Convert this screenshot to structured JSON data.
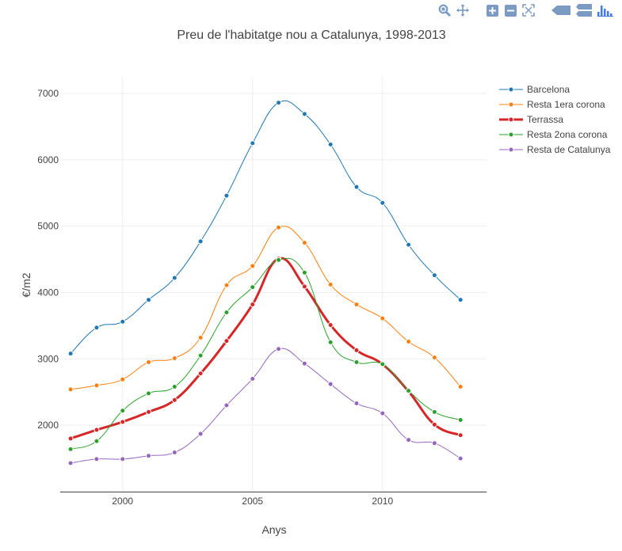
{
  "modebar": {
    "buttons": [
      {
        "name": "zoom-icon"
      },
      {
        "name": "pan-icon"
      },
      {
        "name": "zoom-in-icon"
      },
      {
        "name": "zoom-out-icon"
      },
      {
        "name": "autoscale-icon"
      },
      {
        "name": "hover-closest-icon"
      },
      {
        "name": "hover-compare-icon"
      },
      {
        "name": "plotly-logo-icon"
      }
    ],
    "icon_color": "#7b9bc3"
  },
  "chart_data": {
    "type": "line",
    "title": "Preu de l'habitatge nou a Catalunya, 1998-2013",
    "xlabel": "Anys",
    "ylabel": "€/m2",
    "xlim": [
      1997.6,
      2014.0
    ],
    "ylim": [
      1000,
      7250
    ],
    "xticks": [
      2000,
      2005,
      2010
    ],
    "yticks": [
      2000,
      3000,
      4000,
      5000,
      6000,
      7000
    ],
    "grid": true,
    "legend_position": "right",
    "x": [
      1998,
      1999,
      2000,
      2001,
      2002,
      2003,
      2004,
      2005,
      2006,
      2007,
      2008,
      2009,
      2010,
      2011,
      2012,
      2013
    ],
    "series": [
      {
        "name": "Barcelona",
        "color": "#1f77b4",
        "width": 1,
        "values": [
          3080,
          3470,
          3560,
          3890,
          4220,
          4770,
          5460,
          6250,
          6860,
          6690,
          6230,
          5590,
          5350,
          4720,
          4260,
          3890
        ]
      },
      {
        "name": "Resta 1era corona",
        "color": "#ff7f0e",
        "width": 1,
        "values": [
          2540,
          2600,
          2690,
          2950,
          3010,
          3320,
          4110,
          4400,
          4980,
          4750,
          4120,
          3820,
          3610,
          3260,
          3020,
          2580
        ]
      },
      {
        "name": "Terrassa",
        "color": "#d62728",
        "width": 3,
        "values": [
          1800,
          1930,
          2050,
          2200,
          2380,
          2780,
          3270,
          3820,
          4510,
          4090,
          3510,
          3130,
          2920,
          2510,
          2010,
          1850
        ]
      },
      {
        "name": "Resta 2ona corona",
        "color": "#2ca02c",
        "width": 1,
        "values": [
          1640,
          1760,
          2220,
          2480,
          2580,
          3050,
          3700,
          4080,
          4490,
          4300,
          3250,
          2950,
          2920,
          2520,
          2200,
          2080
        ]
      },
      {
        "name": "Resta de Catalunya",
        "color": "#9467bd",
        "width": 1,
        "values": [
          1430,
          1490,
          1490,
          1540,
          1590,
          1870,
          2300,
          2700,
          3150,
          2930,
          2620,
          2330,
          2180,
          1780,
          1730,
          1500
        ]
      }
    ]
  }
}
